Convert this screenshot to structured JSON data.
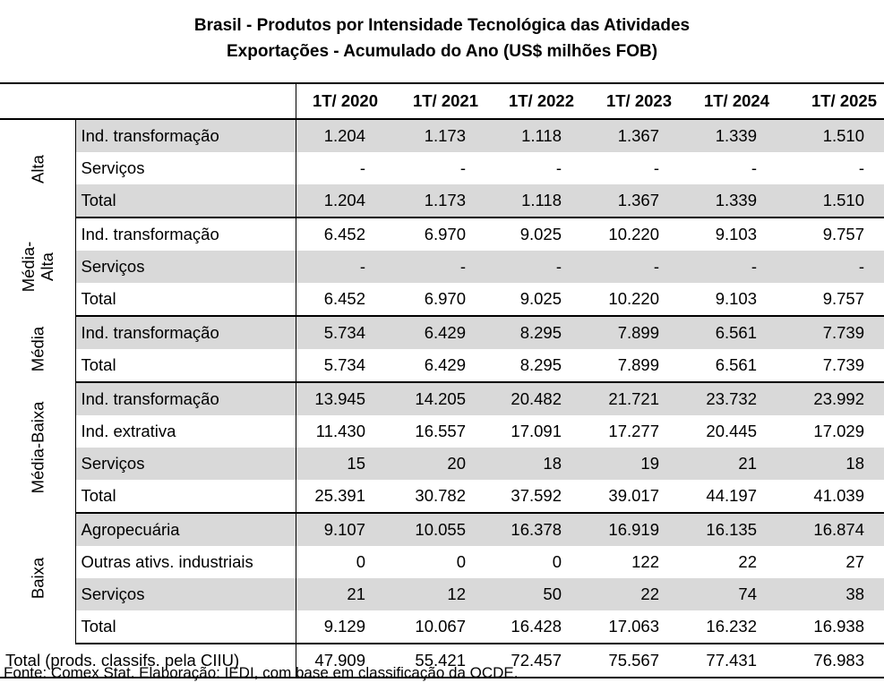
{
  "title": {
    "line1": "Brasil - Produtos por Intensidade Tecnológica das Atividades",
    "line2": "Exportações - Acumulado do Ano (US$ milhões FOB)"
  },
  "columns": [
    "1T/ 2020",
    "1T/ 2021",
    "1T/ 2022",
    "1T/ 2023",
    "1T/ 2024",
    "1T/ 2025"
  ],
  "groups": [
    {
      "label": "Alta",
      "rows": [
        {
          "label": "Ind. transformação",
          "values": [
            "1.204",
            "1.173",
            "1.118",
            "1.367",
            "1.339",
            "1.510"
          ],
          "shade": true
        },
        {
          "label": "Serviços",
          "values": [
            "-",
            "-",
            "-",
            "-",
            "-",
            "-"
          ],
          "shade": false
        },
        {
          "label": "Total",
          "values": [
            "1.204",
            "1.173",
            "1.118",
            "1.367",
            "1.339",
            "1.510"
          ],
          "shade": true
        }
      ]
    },
    {
      "label": "Média-\nAlta",
      "rows": [
        {
          "label": "Ind. transformação",
          "values": [
            "6.452",
            "6.970",
            "9.025",
            "10.220",
            "9.103",
            "9.757"
          ],
          "shade": false
        },
        {
          "label": "Serviços",
          "values": [
            "-",
            "-",
            "-",
            "-",
            "-",
            "-"
          ],
          "shade": true
        },
        {
          "label": "Total",
          "values": [
            "6.452",
            "6.970",
            "9.025",
            "10.220",
            "9.103",
            "9.757"
          ],
          "shade": false
        }
      ]
    },
    {
      "label": "Média",
      "rows": [
        {
          "label": "Ind. transformação",
          "values": [
            "5.734",
            "6.429",
            "8.295",
            "7.899",
            "6.561",
            "7.739"
          ],
          "shade": true
        },
        {
          "label": "Total",
          "values": [
            "5.734",
            "6.429",
            "8.295",
            "7.899",
            "6.561",
            "7.739"
          ],
          "shade": false
        }
      ]
    },
    {
      "label": "Média-Baixa",
      "rows": [
        {
          "label": "Ind. transformação",
          "values": [
            "13.945",
            "14.205",
            "20.482",
            "21.721",
            "23.732",
            "23.992"
          ],
          "shade": true
        },
        {
          "label": "Ind. extrativa",
          "values": [
            "11.430",
            "16.557",
            "17.091",
            "17.277",
            "20.445",
            "17.029"
          ],
          "shade": false
        },
        {
          "label": "Serviços",
          "values": [
            "15",
            "20",
            "18",
            "19",
            "21",
            "18"
          ],
          "shade": true
        },
        {
          "label": "Total",
          "values": [
            "25.391",
            "30.782",
            "37.592",
            "39.017",
            "44.197",
            "41.039"
          ],
          "shade": false
        }
      ]
    },
    {
      "label": "Baixa",
      "rows": [
        {
          "label": "Agropecuária",
          "values": [
            "9.107",
            "10.055",
            "16.378",
            "16.919",
            "16.135",
            "16.874"
          ],
          "shade": true
        },
        {
          "label": "Outras ativs. industriais",
          "values": [
            "0",
            "0",
            "0",
            "122",
            "22",
            "27"
          ],
          "shade": false
        },
        {
          "label": "Serviços",
          "values": [
            "21",
            "12",
            "50",
            "22",
            "74",
            "38"
          ],
          "shade": true
        },
        {
          "label": "Total",
          "values": [
            "9.129",
            "10.067",
            "16.428",
            "17.063",
            "16.232",
            "16.938"
          ],
          "shade": false
        }
      ]
    }
  ],
  "total": {
    "label": "Total (prods. classifs. pela CIIU)",
    "values": [
      "47.909",
      "55.421",
      "72.457",
      "75.567",
      "77.431",
      "76.983"
    ]
  },
  "source": "Fonte: Comex Stat. Elaboração: IEDI, com base em classificação da OCDE."
}
